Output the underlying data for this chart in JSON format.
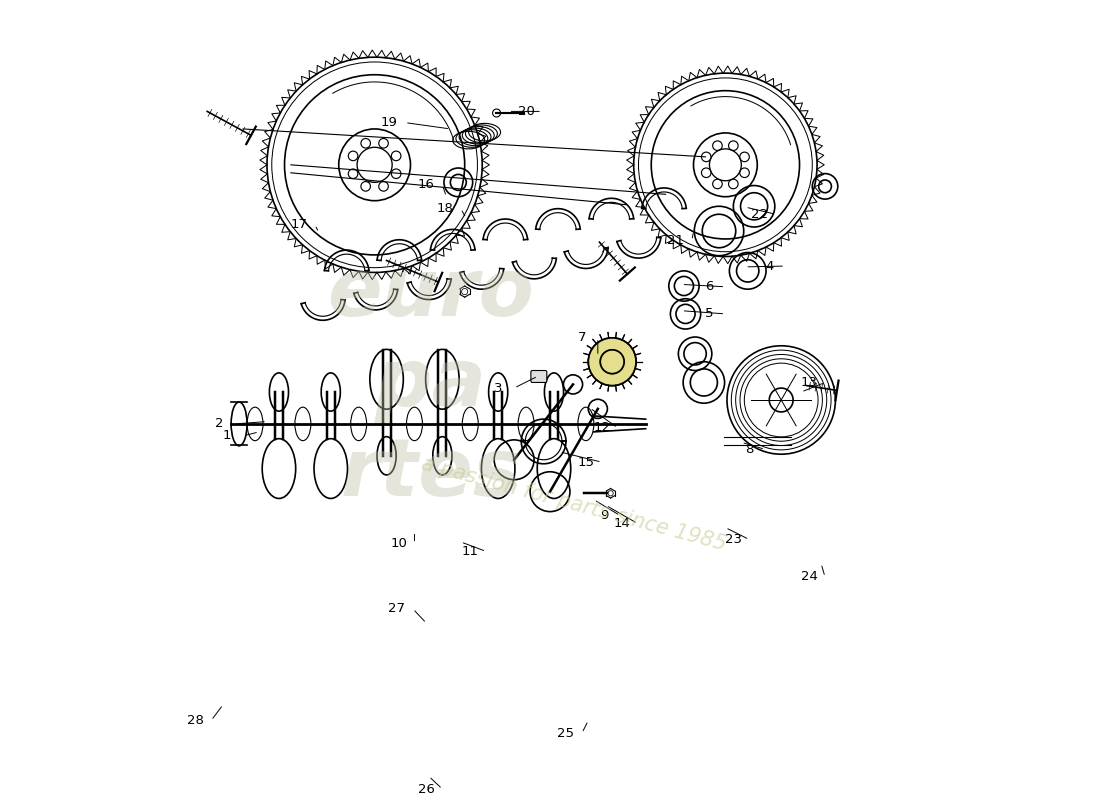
{
  "background_color": "#ffffff",
  "line_color": "#000000",
  "watermark1": "europartes",
  "watermark2": "a passion for parts since 1985",
  "parts_labels": [
    [
      1,
      0.095,
      0.455,
      0.135,
      0.46
    ],
    [
      2,
      0.085,
      0.47,
      0.145,
      0.473
    ],
    [
      3,
      0.435,
      0.515,
      0.485,
      0.53
    ],
    [
      4,
      0.775,
      0.668,
      0.745,
      0.667
    ],
    [
      5,
      0.7,
      0.608,
      0.665,
      0.612
    ],
    [
      6,
      0.7,
      0.642,
      0.665,
      0.645
    ],
    [
      7,
      0.54,
      0.578,
      0.56,
      0.555
    ],
    [
      8,
      0.75,
      0.438,
      0.74,
      0.447
    ],
    [
      9,
      0.568,
      0.355,
      0.555,
      0.375
    ],
    [
      10,
      0.31,
      0.32,
      0.33,
      0.335
    ],
    [
      11,
      0.4,
      0.31,
      0.388,
      0.322
    ],
    [
      12,
      0.565,
      0.465,
      0.55,
      0.49
    ],
    [
      13,
      0.825,
      0.522,
      0.815,
      0.51
    ],
    [
      14,
      0.59,
      0.345,
      0.57,
      0.368
    ],
    [
      15,
      0.545,
      0.422,
      0.512,
      0.435
    ],
    [
      16,
      0.345,
      0.77,
      0.37,
      0.755
    ],
    [
      17,
      0.185,
      0.72,
      0.21,
      0.71
    ],
    [
      18,
      0.368,
      0.74,
      0.395,
      0.728
    ],
    [
      19,
      0.298,
      0.848,
      0.375,
      0.84
    ],
    [
      20,
      0.47,
      0.862,
      0.448,
      0.862
    ],
    [
      21,
      0.658,
      0.7,
      0.68,
      0.712
    ],
    [
      22,
      0.763,
      0.733,
      0.745,
      0.742
    ],
    [
      23,
      0.73,
      0.325,
      0.72,
      0.34
    ],
    [
      24,
      0.825,
      0.278,
      0.84,
      0.295
    ],
    [
      25,
      0.52,
      0.082,
      0.548,
      0.098
    ],
    [
      26,
      0.345,
      0.012,
      0.348,
      0.028
    ],
    [
      27,
      0.308,
      0.238,
      0.345,
      0.22
    ],
    [
      28,
      0.055,
      0.098,
      0.09,
      0.118
    ]
  ]
}
